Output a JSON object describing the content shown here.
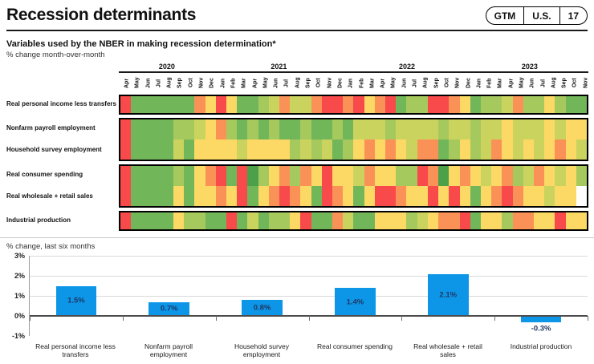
{
  "header": {
    "title": "Recession determinants",
    "badge": {
      "gtm": "GTM",
      "region": "U.S.",
      "page": "17"
    }
  },
  "heatmap": {
    "title": "Variables used by the NBER in making recession determination*",
    "subtitle": "% change month-over-month",
    "years": [
      {
        "label": "2020",
        "span": 9
      },
      {
        "label": "2021",
        "span": 12
      },
      {
        "label": "2022",
        "span": 12
      },
      {
        "label": "2023",
        "span": 11
      }
    ],
    "months": [
      "Apr",
      "May",
      "Jun",
      "Jul",
      "Aug",
      "Sep",
      "Oct",
      "Nov",
      "Dec",
      "Jan",
      "Feb",
      "Mar",
      "Apr",
      "May",
      "Jun",
      "Jul",
      "Aug",
      "Sep",
      "Oct",
      "Nov",
      "Dec",
      "Jan",
      "Feb",
      "Mar",
      "Apr",
      "May",
      "Jun",
      "Jul",
      "Aug",
      "Sep",
      "Oct",
      "Nov",
      "Dec",
      "Jan",
      "Feb",
      "Mar",
      "Apr",
      "May",
      "Jun",
      "Jul",
      "Aug",
      "Sep",
      "Oct",
      "Nov"
    ],
    "palette": {
      "R": "#F8494B",
      "O": "#FA9257",
      "Y": "#FCD964",
      "YG": "#CBD35F",
      "LG": "#A6C95D",
      "G": "#72B65A",
      "DG": "#4BA049",
      "W": "#FFFFFF"
    },
    "blocks": [
      {
        "rows": [
          {
            "label": "Real personal income less transfers",
            "cells": [
              "R",
              "G",
              "G",
              "G",
              "G",
              "G",
              "G",
              "O",
              "Y",
              "R",
              "Y",
              "G",
              "G",
              "LG",
              "YG",
              "O",
              "YG",
              "YG",
              "O",
              "R",
              "R",
              "O",
              "R",
              "Y",
              "O",
              "R",
              "G",
              "LG",
              "LG",
              "R",
              "R",
              "O",
              "Y",
              "G",
              "LG",
              "LG",
              "YG",
              "O",
              "LG",
              "LG",
              "Y",
              "LG",
              "G",
              "G"
            ]
          }
        ]
      },
      {
        "rows": [
          {
            "label": "Nonfarm payroll employment",
            "cells": [
              "R",
              "G",
              "G",
              "G",
              "G",
              "LG",
              "LG",
              "YG",
              "Y",
              "O",
              "LG",
              "G",
              "LG",
              "G",
              "LG",
              "G",
              "G",
              "LG",
              "G",
              "G",
              "LG",
              "G",
              "YG",
              "YG",
              "YG",
              "LG",
              "YG",
              "YG",
              "YG",
              "YG",
              "LG",
              "YG",
              "YG",
              "LG",
              "YG",
              "YG",
              "Y",
              "YG",
              "YG",
              "YG",
              "Y",
              "YG",
              "Y",
              "Y"
            ]
          },
          {
            "label": "Household survey employment",
            "cells": [
              "R",
              "G",
              "G",
              "G",
              "G",
              "YG",
              "G",
              "Y",
              "Y",
              "Y",
              "Y",
              "YG",
              "Y",
              "Y",
              "Y",
              "Y",
              "LG",
              "YG",
              "LG",
              "YG",
              "G",
              "LG",
              "Y",
              "O",
              "Y",
              "O",
              "Y",
              "YG",
              "O",
              "O",
              "G",
              "LG",
              "Y",
              "LG",
              "YG",
              "O",
              "Y",
              "YG",
              "Y",
              "YG",
              "Y",
              "O",
              "Y",
              "YG"
            ]
          }
        ]
      },
      {
        "rows": [
          {
            "label": "Real consumer spending",
            "cells": [
              "R",
              "G",
              "G",
              "G",
              "G",
              "LG",
              "G",
              "Y",
              "O",
              "R",
              "G",
              "R",
              "DG",
              "LG",
              "Y",
              "O",
              "LG",
              "O",
              "Y",
              "R",
              "Y",
              "Y",
              "YG",
              "O",
              "Y",
              "Y",
              "LG",
              "LG",
              "R",
              "O",
              "DG",
              "Y",
              "O",
              "Y",
              "YG",
              "Y",
              "O",
              "LG",
              "YG",
              "O",
              "Y",
              "YG",
              "Y",
              "LG"
            ]
          },
          {
            "label": "Real wholesale + retail sales",
            "cells": [
              "R",
              "G",
              "G",
              "G",
              "G",
              "Y",
              "G",
              "Y",
              "Y",
              "O",
              "Y",
              "R",
              "G",
              "Y",
              "O",
              "R",
              "O",
              "Y",
              "G",
              "R",
              "O",
              "Y",
              "G",
              "Y",
              "R",
              "R",
              "O",
              "Y",
              "Y",
              "R",
              "Y",
              "R",
              "Y",
              "G",
              "Y",
              "O",
              "R",
              "O",
              "Y",
              "Y",
              "YG",
              "Y",
              "Y",
              "W"
            ]
          }
        ]
      },
      {
        "rows": [
          {
            "label": "Industrial production",
            "cells": [
              "R",
              "G",
              "G",
              "G",
              "G",
              "Y",
              "LG",
              "LG",
              "G",
              "G",
              "R",
              "G",
              "YG",
              "G",
              "LG",
              "LG",
              "Y",
              "R",
              "G",
              "G",
              "O",
              "YG",
              "G",
              "G",
              "Y",
              "Y",
              "Y",
              "LG",
              "YG",
              "Y",
              "O",
              "O",
              "R",
              "G",
              "Y",
              "Y",
              "LG",
              "O",
              "O",
              "Y",
              "Y",
              "R",
              "Y",
              "Y"
            ]
          }
        ]
      }
    ]
  },
  "chart_data": {
    "type": "bar",
    "title": "% change, last six months",
    "categories": [
      "Real personal income less transfers",
      "Nonfarm payroll employment",
      "Household survey employment",
      "Real consumer spending",
      "Real wholesale + retail sales",
      "Industrial production"
    ],
    "values": [
      1.5,
      0.7,
      0.8,
      1.4,
      2.1,
      -0.3
    ],
    "value_labels": [
      "1.5%",
      "0.7%",
      "0.8%",
      "1.4%",
      "2.1%",
      "-0.3%"
    ],
    "ylim": [
      -1,
      3
    ],
    "yticks": [
      3,
      2,
      1,
      0,
      -1
    ],
    "ytick_labels": [
      "3%",
      "2%",
      "1%",
      "0%",
      "-1%"
    ],
    "grid": "horizontal",
    "bar_color": "#0D96E8",
    "label_color": "#1F3864"
  }
}
